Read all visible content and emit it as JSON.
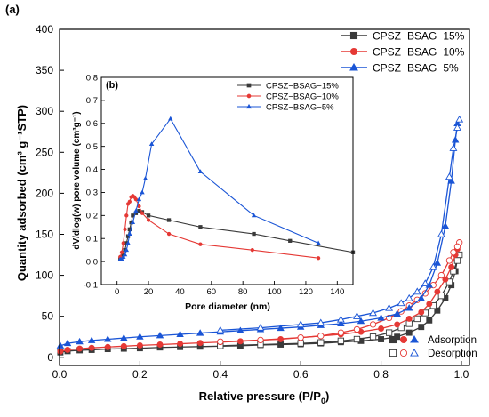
{
  "chart_data": [
    {
      "panel_label": "(a)",
      "type": "line",
      "xlabel": "Relative pressure (P/P",
      "xlabel_sub": "0",
      "xlabel_close": ")",
      "ylabel": "Quantity adsorbed (cm³ g⁻¹STP)",
      "xlim": [
        0.0,
        1.02
      ],
      "ylim": [
        -10,
        400
      ],
      "xticks": [
        "0.0",
        "0.2",
        "0.4",
        "0.6",
        "0.8",
        "1.0"
      ],
      "yticks": [
        "0",
        "50",
        "100",
        "150",
        "200",
        "250",
        "300",
        "350",
        "400"
      ],
      "legend_placement": "top-right",
      "marker_legend": {
        "adsorption_label": "Adsorption",
        "desorption_label": "Desorption",
        "placement": "bottom-right"
      },
      "series": [
        {
          "name": "CPSZ−BSAG−15%",
          "color": "#3a3a3a",
          "marker": "square",
          "adsorption": {
            "x": [
              0.002,
              0.02,
              0.05,
              0.08,
              0.12,
              0.16,
              0.2,
              0.25,
              0.3,
              0.35,
              0.4,
              0.45,
              0.5,
              0.55,
              0.6,
              0.65,
              0.7,
              0.75,
              0.8,
              0.84,
              0.87,
              0.9,
              0.92,
              0.94,
              0.96,
              0.975,
              0.985,
              0.99
            ],
            "y": [
              6,
              7.5,
              8.5,
              9,
              10,
              10.5,
              11,
              12,
              12.5,
              13,
              13.5,
              14,
              15,
              15.5,
              16,
              17,
              18.5,
              20,
              22,
              25,
              30,
              37,
              45,
              57,
              72,
              88,
              105,
              120
            ]
          },
          "desorption": {
            "x": [
              0.995,
              0.99,
              0.98,
              0.97,
              0.95,
              0.93,
              0.91,
              0.89,
              0.87,
              0.85,
              0.82,
              0.78,
              0.74,
              0.7,
              0.65,
              0.6,
              0.5,
              0.4
            ],
            "y": [
              125,
              118,
              105,
              92,
              75,
              63,
              54,
              47,
              41,
              36,
              30,
              25,
              22,
              20,
              18,
              17,
              15.5,
              14
            ]
          }
        },
        {
          "name": "CPSZ−BSAG−10%",
          "color": "#e53935",
          "marker": "circle",
          "adsorption": {
            "x": [
              0.002,
              0.02,
              0.05,
              0.08,
              0.12,
              0.16,
              0.2,
              0.25,
              0.3,
              0.35,
              0.4,
              0.45,
              0.5,
              0.55,
              0.6,
              0.65,
              0.7,
              0.75,
              0.8,
              0.84,
              0.87,
              0.9,
              0.92,
              0.94,
              0.96,
              0.975,
              0.985,
              0.99
            ],
            "y": [
              7,
              9,
              10.5,
              11.5,
              12.5,
              13.5,
              14.5,
              15.5,
              16.5,
              17.5,
              18.5,
              19.5,
              21,
              22,
              24,
              26,
              28,
              31,
              35,
              40,
              47,
              55,
              65,
              80,
              95,
              110,
              125,
              132
            ]
          },
          "desorption": {
            "x": [
              0.995,
              0.99,
              0.98,
              0.97,
              0.95,
              0.93,
              0.91,
              0.89,
              0.87,
              0.85,
              0.82,
              0.78,
              0.74,
              0.7,
              0.65,
              0.6,
              0.5,
              0.4
            ],
            "y": [
              140,
              135,
              128,
              118,
              100,
              88,
              78,
              70,
              63,
              56,
              48,
              40,
              34,
              30,
              26,
              24,
              21,
              19
            ]
          }
        },
        {
          "name": "CPSZ−BSAG−5%",
          "color": "#1a55d6",
          "marker": "triangle",
          "adsorption": {
            "x": [
              0.002,
              0.02,
              0.05,
              0.08,
              0.12,
              0.16,
              0.2,
              0.25,
              0.3,
              0.35,
              0.4,
              0.45,
              0.5,
              0.55,
              0.6,
              0.65,
              0.7,
              0.75,
              0.8,
              0.84,
              0.87,
              0.9,
              0.92,
              0.94,
              0.96,
              0.975,
              0.985,
              0.99
            ],
            "y": [
              14,
              17,
              19,
              20.5,
              22,
              23.5,
              25,
              26.5,
              28,
              29.5,
              31,
              32.5,
              34,
              35.5,
              37,
              39,
              41,
              44,
              48,
              53,
              60,
              72,
              88,
              115,
              160,
              215,
              265,
              285
            ]
          },
          "desorption": {
            "x": [
              0.995,
              0.99,
              0.98,
              0.97,
              0.95,
              0.93,
              0.91,
              0.89,
              0.87,
              0.85,
              0.82,
              0.78,
              0.74,
              0.7,
              0.65,
              0.6,
              0.5,
              0.4
            ],
            "y": [
              290,
              280,
              255,
              220,
              150,
              110,
              90,
              80,
              72,
              66,
              60,
              54,
              50,
              46,
              42,
              40,
              36,
              33
            ]
          }
        }
      ]
    },
    {
      "panel_label": "(b)",
      "type": "line",
      "xlabel": "Pore diameter (nm)",
      "ylabel": "dV/dlog(w) pore volume (cm³g⁻¹)",
      "xlim": [
        -10,
        150
      ],
      "ylim": [
        -0.1,
        0.8
      ],
      "xticks": [
        "0",
        "20",
        "40",
        "60",
        "80",
        "100",
        "120",
        "140"
      ],
      "yticks": [
        "-0.1",
        "0.0",
        "0.1",
        "0.2",
        "0.3",
        "0.4",
        "0.5",
        "0.6",
        "0.7",
        "0.8"
      ],
      "legend_placement": "top-right",
      "series": [
        {
          "name": "CPSZ−BSAG−15%",
          "color": "#3a3a3a",
          "marker": "square",
          "x": [
            2,
            3,
            4,
            5,
            6,
            7,
            8,
            9,
            10,
            12,
            14,
            16,
            20,
            33,
            53,
            87,
            110,
            150
          ],
          "y": [
            0.01,
            0.02,
            0.03,
            0.05,
            0.08,
            0.11,
            0.14,
            0.17,
            0.2,
            0.21,
            0.22,
            0.215,
            0.2,
            0.18,
            0.15,
            0.12,
            0.09,
            0.04
          ]
        },
        {
          "name": "CPSZ−BSAG−10%",
          "color": "#e53935",
          "marker": "circle",
          "x": [
            2,
            3,
            4,
            5,
            6,
            7,
            8,
            9,
            10,
            11,
            12,
            14,
            16,
            20,
            33,
            53,
            86,
            128
          ],
          "y": [
            0.02,
            0.04,
            0.08,
            0.14,
            0.2,
            0.25,
            0.26,
            0.28,
            0.285,
            0.28,
            0.27,
            0.24,
            0.21,
            0.18,
            0.12,
            0.075,
            0.05,
            0.015
          ]
        },
        {
          "name": "CPSZ−BSAG−5%",
          "color": "#1a55d6",
          "marker": "triangle",
          "x": [
            2,
            3,
            4,
            5,
            6,
            7,
            8,
            10,
            12,
            14,
            16,
            18,
            22,
            34,
            53,
            87,
            128
          ],
          "y": [
            0.01,
            0.01,
            0.02,
            0.03,
            0.05,
            0.08,
            0.12,
            0.17,
            0.22,
            0.27,
            0.3,
            0.36,
            0.51,
            0.62,
            0.39,
            0.2,
            0.08
          ]
        }
      ]
    }
  ]
}
